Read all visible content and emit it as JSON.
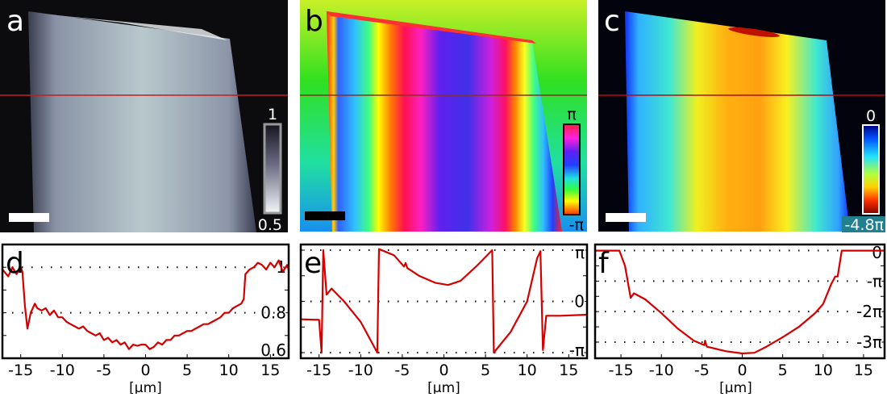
{
  "panels": {
    "a": {
      "letter": "a",
      "colorbar_max": "1",
      "colorbar_min": "0.5"
    },
    "b": {
      "letter": "b",
      "colorbar_max": "π",
      "colorbar_min": "-π"
    },
    "c": {
      "letter": "c",
      "colorbar_max": "0",
      "colorbar_min": "-4.8π"
    }
  },
  "colors": {
    "profile_line": "#d40000",
    "cut_line": "#c0201a"
  },
  "chart_data": [
    {
      "letter": "d",
      "type": "line",
      "xlabel": "[µm]",
      "ylabel": "",
      "xlim": [
        -17.2,
        17.2
      ],
      "ylim": [
        0.6,
        1.1
      ],
      "xticks": [
        -15,
        -10,
        -5,
        0,
        5,
        10,
        15
      ],
      "xtick_labels": [
        "-15",
        "-10",
        "-5",
        "0",
        "5",
        "10",
        "15"
      ],
      "yticks": [
        1,
        0.8,
        0.6
      ],
      "ytick_labels": [
        "1",
        "0.8",
        "0.6"
      ],
      "minor_yticks": [
        0.7,
        0.9
      ],
      "grid": "dotted at labeled y ticks",
      "series": [
        {
          "x": [
            -17.2,
            -16.5,
            -16,
            -15.5,
            -15,
            -14.8,
            -14.5,
            -14.2,
            -13.8,
            -13.3,
            -13,
            -12.5,
            -12,
            -11.5,
            -11,
            -10.5,
            -10,
            -9.5,
            -9,
            -8.5,
            -8,
            -7.5,
            -7,
            -6.5,
            -6,
            -5.5,
            -5,
            -4.5,
            -4,
            -3.5,
            -3,
            -2.5,
            -2,
            -1.5,
            -1,
            -0.5,
            0,
            0.5,
            1,
            1.5,
            2,
            2.5,
            3,
            3.5,
            4,
            4.5,
            5,
            5.5,
            6,
            6.5,
            7,
            7.5,
            8,
            8.5,
            9,
            9.5,
            10,
            10.5,
            11,
            11.5,
            11.8,
            12,
            12.5,
            13,
            13.5,
            14,
            14.5,
            15,
            15.5,
            16,
            16.5,
            17,
            17.2
          ],
          "y": [
            0.99,
            0.96,
            1.0,
            0.97,
            1.0,
            0.98,
            0.83,
            0.73,
            0.8,
            0.84,
            0.82,
            0.81,
            0.82,
            0.79,
            0.81,
            0.78,
            0.78,
            0.76,
            0.75,
            0.74,
            0.73,
            0.74,
            0.72,
            0.71,
            0.7,
            0.71,
            0.68,
            0.69,
            0.67,
            0.68,
            0.66,
            0.67,
            0.64,
            0.66,
            0.655,
            0.66,
            0.66,
            0.64,
            0.65,
            0.67,
            0.66,
            0.68,
            0.68,
            0.7,
            0.7,
            0.71,
            0.72,
            0.72,
            0.73,
            0.74,
            0.75,
            0.75,
            0.76,
            0.77,
            0.78,
            0.8,
            0.8,
            0.82,
            0.83,
            0.84,
            0.86,
            0.97,
            0.99,
            1.0,
            1.02,
            1.01,
            0.99,
            1.02,
            1.0,
            1.03,
            0.98,
            1.01,
            0.99
          ]
        }
      ]
    },
    {
      "letter": "e",
      "type": "line",
      "xlabel": "[µm]",
      "ylabel": "",
      "y_unit": "π",
      "xlim": [
        -17.2,
        17.2
      ],
      "ylim": [
        -1.11,
        1.11
      ],
      "xticks": [
        -15,
        -10,
        -5,
        0,
        5,
        10,
        15
      ],
      "xtick_labels": [
        "-15",
        "-10",
        "-5",
        "0",
        "5",
        "10",
        "15"
      ],
      "yticks": [
        1,
        0,
        -1
      ],
      "ytick_labels": [
        "π",
        "0",
        "-π"
      ],
      "minor_yticks": [
        0.5,
        -0.5
      ],
      "grid": "dotted at labeled y ticks",
      "series": [
        {
          "x": [
            -17.2,
            -15,
            -14.7,
            -14.5,
            -14.1,
            -13.5,
            -12,
            -10,
            -8,
            -7.8,
            -6,
            -4.8,
            -4.6,
            -4.4,
            -3,
            -1,
            0.5,
            2,
            4,
            5.8,
            6,
            8,
            10,
            11.2,
            11.6,
            11.9,
            12.3,
            14,
            17.2
          ],
          "y": [
            -0.35,
            -0.36,
            -1.0,
            1.0,
            0.13,
            0.25,
            0.0,
            -0.4,
            -1.0,
            1.02,
            0.9,
            0.68,
            0.75,
            0.65,
            0.5,
            0.36,
            0.32,
            0.4,
            0.7,
            1.0,
            -1.0,
            -0.6,
            0.0,
            0.84,
            0.98,
            -0.95,
            -0.28,
            -0.28,
            -0.26
          ]
        }
      ]
    },
    {
      "letter": "f",
      "type": "line",
      "xlabel": "[µm]",
      "ylabel": "",
      "y_unit": "π",
      "xlim": [
        -18.2,
        17.6
      ],
      "ylim": [
        -3.53,
        0.2
      ],
      "xticks": [
        -15,
        -10,
        -5,
        0,
        5,
        10,
        15
      ],
      "xtick_labels": [
        "-15",
        "-10",
        "-5",
        "0",
        "5",
        "10",
        "15"
      ],
      "yticks": [
        0,
        -1,
        -2,
        -3
      ],
      "ytick_labels": [
        "0",
        "-π",
        "-2π",
        "-3π"
      ],
      "minor_yticks": [
        -0.5,
        -1.5,
        -2.5
      ],
      "grid": "dotted at labeled y ticks",
      "series": [
        {
          "x": [
            -18.2,
            -15.2,
            -14.5,
            -13.8,
            -13.4,
            -12,
            -10,
            -8,
            -6,
            -4.7,
            -4.6,
            -4.4,
            -2,
            0,
            1.5,
            3,
            5,
            7,
            9,
            10,
            11,
            11.5,
            11.8,
            12.3,
            17.6
          ],
          "y": [
            0,
            0,
            -0.5,
            -1.55,
            -1.4,
            -1.6,
            -2.05,
            -2.55,
            -2.95,
            -3.1,
            -2.95,
            -3.15,
            -3.3,
            -3.37,
            -3.35,
            -3.15,
            -2.84,
            -2.5,
            -2.05,
            -1.75,
            -1.1,
            -0.85,
            -0.85,
            0,
            0
          ]
        }
      ]
    }
  ]
}
